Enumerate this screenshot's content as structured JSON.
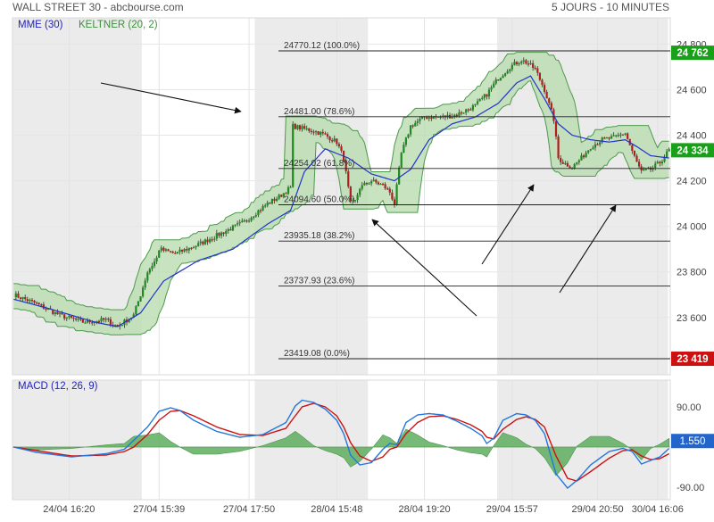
{
  "header": {
    "title": "WALL STREET 30 - abcbourse.com",
    "timeframe": "5 JOURS - 10 MINUTES"
  },
  "legend": {
    "ema": "MME (30)",
    "keltner": "KELTNER (20, 2)",
    "macd": "MACD (12, 26, 9)"
  },
  "colors": {
    "ema": "#2233cc",
    "keltner_fill": "#b9dcb0",
    "keltner_line": "#4c9a4c",
    "candle_up": "#1f8a1f",
    "candle_down": "#b01e1e",
    "macd_line": "#2277dd",
    "signal_line": "#cc1111",
    "histogram": "#5fae5f",
    "shade": "#ebebeb",
    "last_price_tag": "#18a018",
    "fib_0_tag": "#cc1111",
    "macd_tag": "#2266cc"
  },
  "chart_data": [
    {
      "type": "candlestick",
      "title": "",
      "x_labels": [
        "24/04 16:20",
        "27/04 15:39",
        "27/04 17:50",
        "28/04 15:48",
        "28/04 19:20",
        "29/04 15:57",
        "29/04 20:50",
        "30/04 16:06"
      ],
      "y_ticks": [
        "23 600",
        "23 800",
        "24 000",
        "24 200",
        "24 400",
        "24 600",
        "24 800"
      ],
      "ylim": [
        23400,
        24830
      ],
      "grid": true,
      "price_tags": [
        {
          "text": "24 762",
          "value": 24762,
          "color": "#18a018"
        },
        {
          "text": "24 334",
          "value": 24334,
          "color": "#18a018"
        },
        {
          "text": "23 419",
          "value": 23419,
          "color": "#cc1111"
        }
      ],
      "fibonacci": [
        {
          "label": "24770.12  (100.0%)",
          "value": 24770.12
        },
        {
          "label": "24481.00  (78.6%)",
          "value": 24481.0
        },
        {
          "label": "24254.02  (61.8%)",
          "value": 24254.02
        },
        {
          "label": "24094.60  (50.0%)",
          "value": 24094.6
        },
        {
          "label": "23935.18  (38.2%)",
          "value": 23935.18
        },
        {
          "label": "23737.93  (23.6%)",
          "value": 23737.93
        },
        {
          "label": "23419.08  (0.0%)",
          "value": 23419.08
        }
      ],
      "series_anchors": {
        "close": [
          [
            0,
            23700
          ],
          [
            10,
            23660
          ],
          [
            20,
            23610
          ],
          [
            30,
            23580
          ],
          [
            40,
            23590
          ],
          [
            45,
            23560
          ],
          [
            52,
            23610
          ],
          [
            55,
            23700
          ],
          [
            58,
            23800
          ],
          [
            62,
            23860
          ],
          [
            63,
            23900
          ],
          [
            70,
            23880
          ],
          [
            80,
            23920
          ],
          [
            90,
            23970
          ],
          [
            100,
            24020
          ],
          [
            110,
            24100
          ],
          [
            115,
            24130
          ],
          [
            120,
            24170
          ],
          [
            121,
            24440
          ],
          [
            125,
            24430
          ],
          [
            130,
            24420
          ],
          [
            135,
            24400
          ],
          [
            140,
            24370
          ],
          [
            143,
            24300
          ],
          [
            146,
            24100
          ],
          [
            148,
            24110
          ],
          [
            150,
            24170
          ],
          [
            155,
            24200
          ],
          [
            160,
            24180
          ],
          [
            163,
            24150
          ],
          [
            165,
            24100
          ],
          [
            168,
            24320
          ],
          [
            172,
            24440
          ],
          [
            178,
            24480
          ],
          [
            186,
            24480
          ],
          [
            192,
            24490
          ],
          [
            200,
            24530
          ],
          [
            205,
            24580
          ],
          [
            210,
            24650
          ],
          [
            215,
            24700
          ],
          [
            220,
            24730
          ],
          [
            222,
            24720
          ],
          [
            226,
            24690
          ],
          [
            230,
            24600
          ],
          [
            234,
            24470
          ],
          [
            236,
            24300
          ],
          [
            238,
            24280
          ],
          [
            242,
            24260
          ],
          [
            246,
            24300
          ],
          [
            250,
            24350
          ],
          [
            255,
            24380
          ],
          [
            260,
            24390
          ],
          [
            265,
            24410
          ],
          [
            268,
            24330
          ],
          [
            270,
            24280
          ],
          [
            272,
            24240
          ],
          [
            276,
            24250
          ],
          [
            280,
            24280
          ],
          [
            284,
            24334
          ]
        ],
        "ema": [
          [
            0,
            23680
          ],
          [
            15,
            23640
          ],
          [
            35,
            23580
          ],
          [
            45,
            23560
          ],
          [
            55,
            23620
          ],
          [
            65,
            23760
          ],
          [
            80,
            23850
          ],
          [
            95,
            23900
          ],
          [
            110,
            24010
          ],
          [
            120,
            24070
          ],
          [
            126,
            24240
          ],
          [
            135,
            24340
          ],
          [
            145,
            24300
          ],
          [
            155,
            24230
          ],
          [
            165,
            24200
          ],
          [
            172,
            24250
          ],
          [
            180,
            24380
          ],
          [
            190,
            24450
          ],
          [
            200,
            24480
          ],
          [
            210,
            24540
          ],
          [
            218,
            24630
          ],
          [
            224,
            24660
          ],
          [
            230,
            24560
          ],
          [
            236,
            24450
          ],
          [
            242,
            24400
          ],
          [
            250,
            24380
          ],
          [
            258,
            24370
          ],
          [
            265,
            24380
          ],
          [
            270,
            24350
          ],
          [
            276,
            24310
          ],
          [
            284,
            24300
          ]
        ]
      },
      "annotations": [
        {
          "type": "arrow",
          "direction": "down-right"
        },
        {
          "type": "arrow",
          "direction": "up-left"
        },
        {
          "type": "arrow",
          "direction": "up-right"
        },
        {
          "type": "arrow",
          "direction": "up-right"
        }
      ]
    },
    {
      "type": "line",
      "title": "MACD (12, 26, 9)",
      "y_ticks": [
        "90.00",
        "-90.00"
      ],
      "ylim": [
        -110,
        110
      ],
      "last_value_tag": {
        "text": "1.550",
        "value": 1.55
      },
      "series": [
        {
          "name": "MACD",
          "anchors": [
            [
              0,
              0
            ],
            [
              10,
              -12
            ],
            [
              25,
              -22
            ],
            [
              40,
              -15
            ],
            [
              48,
              -5
            ],
            [
              52,
              15
            ],
            [
              58,
              45
            ],
            [
              63,
              80
            ],
            [
              68,
              88
            ],
            [
              72,
              82
            ],
            [
              78,
              60
            ],
            [
              88,
              35
            ],
            [
              98,
              22
            ],
            [
              108,
              28
            ],
            [
              118,
              55
            ],
            [
              122,
              92
            ],
            [
              125,
              105
            ],
            [
              130,
              100
            ],
            [
              135,
              85
            ],
            [
              140,
              60
            ],
            [
              143,
              30
            ],
            [
              146,
              -18
            ],
            [
              150,
              -40
            ],
            [
              155,
              -35
            ],
            [
              160,
              -5
            ],
            [
              163,
              8
            ],
            [
              166,
              5
            ],
            [
              170,
              55
            ],
            [
              175,
              72
            ],
            [
              180,
              75
            ],
            [
              186,
              72
            ],
            [
              192,
              58
            ],
            [
              198,
              42
            ],
            [
              203,
              25
            ],
            [
              205,
              8
            ],
            [
              208,
              20
            ],
            [
              212,
              60
            ],
            [
              218,
              75
            ],
            [
              222,
              72
            ],
            [
              226,
              60
            ],
            [
              230,
              30
            ],
            [
              235,
              -60
            ],
            [
              240,
              -92
            ],
            [
              244,
              -75
            ],
            [
              250,
              -40
            ],
            [
              258,
              -10
            ],
            [
              264,
              -3
            ],
            [
              268,
              -10
            ],
            [
              272,
              -38
            ],
            [
              276,
              -30
            ],
            [
              280,
              -22
            ],
            [
              284,
              -3
            ]
          ]
        },
        {
          "name": "Signal",
          "anchors": [
            [
              0,
              0
            ],
            [
              10,
              -8
            ],
            [
              25,
              -20
            ],
            [
              40,
              -18
            ],
            [
              48,
              -10
            ],
            [
              52,
              0
            ],
            [
              58,
              28
            ],
            [
              63,
              60
            ],
            [
              68,
              80
            ],
            [
              72,
              82
            ],
            [
              78,
              70
            ],
            [
              88,
              45
            ],
            [
              98,
              28
            ],
            [
              108,
              26
            ],
            [
              118,
              42
            ],
            [
              122,
              70
            ],
            [
              125,
              90
            ],
            [
              130,
              98
            ],
            [
              135,
              90
            ],
            [
              140,
              70
            ],
            [
              143,
              45
            ],
            [
              146,
              10
            ],
            [
              150,
              -20
            ],
            [
              155,
              -32
            ],
            [
              160,
              -22
            ],
            [
              163,
              -5
            ],
            [
              166,
              0
            ],
            [
              170,
              30
            ],
            [
              175,
              55
            ],
            [
              180,
              68
            ],
            [
              186,
              70
            ],
            [
              192,
              62
            ],
            [
              198,
              50
            ],
            [
              203,
              35
            ],
            [
              205,
              22
            ],
            [
              208,
              18
            ],
            [
              212,
              40
            ],
            [
              218,
              62
            ],
            [
              222,
              68
            ],
            [
              226,
              62
            ],
            [
              230,
              45
            ],
            [
              235,
              -20
            ],
            [
              240,
              -70
            ],
            [
              244,
              -76
            ],
            [
              250,
              -55
            ],
            [
              258,
              -25
            ],
            [
              264,
              -8
            ],
            [
              268,
              -6
            ],
            [
              272,
              -20
            ],
            [
              276,
              -28
            ],
            [
              280,
              -26
            ],
            [
              284,
              -15
            ]
          ]
        }
      ]
    }
  ]
}
